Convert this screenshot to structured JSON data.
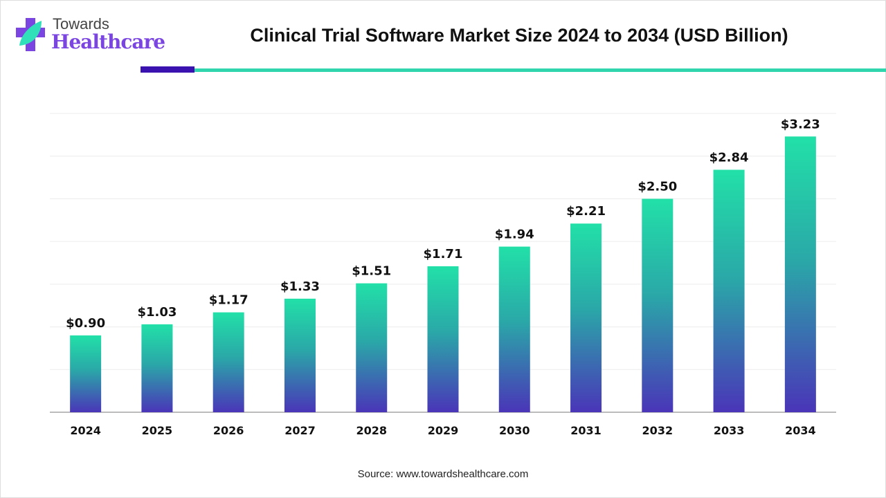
{
  "logo": {
    "line1": "Towards",
    "line2": "Healthcare"
  },
  "source": "Source: www.towardshealthcare.com",
  "colors": {
    "bar_top": "#22e0a8",
    "bar_bottom": "#4a35b8",
    "accent_dark": "#3a12b0",
    "accent_teal": "#30d5ae"
  },
  "chart_data": {
    "type": "bar",
    "title": "Clinical Trial Software Market Size 2024 to 2034 (USD Billion)",
    "categories": [
      "2024",
      "2025",
      "2026",
      "2027",
      "2028",
      "2029",
      "2030",
      "2031",
      "2032",
      "2033",
      "2034"
    ],
    "values": [
      0.9,
      1.03,
      1.17,
      1.33,
      1.51,
      1.71,
      1.94,
      2.21,
      2.5,
      2.84,
      3.23
    ],
    "data_labels": [
      "$0.90",
      "$1.03",
      "$1.17",
      "$1.33",
      "$1.51",
      "$1.71",
      "$1.94",
      "$2.21",
      "$2.50",
      "$2.84",
      "$3.23"
    ],
    "xlabel": "",
    "ylabel": "",
    "ylim": [
      0,
      3.5
    ],
    "grid_step": 0.5,
    "grid": true,
    "legend": "none"
  }
}
